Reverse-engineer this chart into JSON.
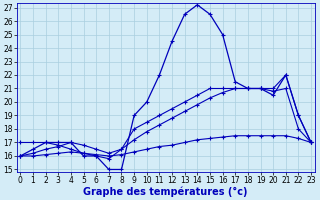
{
  "title": "Graphe des températures (°c)",
  "background_color": "#d4ecf7",
  "line_color": "#0000bb",
  "grid_color": "#aacfe0",
  "hours": [
    0,
    1,
    2,
    3,
    4,
    5,
    6,
    7,
    8,
    9,
    10,
    11,
    12,
    13,
    14,
    15,
    16,
    17,
    18,
    19,
    20,
    21,
    22,
    23
  ],
  "temp_main": [
    16,
    16.5,
    17,
    17,
    17,
    16,
    16,
    15,
    15,
    19,
    20,
    22,
    24.5,
    26.5,
    27.2,
    26.5,
    25,
    21.5,
    21,
    21,
    20.5,
    22,
    19,
    17
  ],
  "temp_line2": [
    17,
    17,
    17,
    16.8,
    16.5,
    16.2,
    16.0,
    15.8,
    16.5,
    18.0,
    18.5,
    19.0,
    19.5,
    20.0,
    20.5,
    21.0,
    21.0,
    21.0,
    21.0,
    21.0,
    21.0,
    22.0,
    19.0,
    17
  ],
  "temp_line3": [
    16,
    16.2,
    16.5,
    16.7,
    17.0,
    16.8,
    16.5,
    16.2,
    16.5,
    17.2,
    17.8,
    18.3,
    18.8,
    19.3,
    19.8,
    20.3,
    20.7,
    21.0,
    21.0,
    21.0,
    20.8,
    21.0,
    18.0,
    17
  ],
  "temp_line4": [
    16,
    16,
    16.1,
    16.2,
    16.3,
    16.2,
    16.1,
    16.0,
    16.1,
    16.3,
    16.5,
    16.7,
    16.8,
    17.0,
    17.2,
    17.3,
    17.4,
    17.5,
    17.5,
    17.5,
    17.5,
    17.5,
    17.3,
    17
  ],
  "ylim": [
    15,
    27
  ],
  "yticks": [
    15,
    16,
    17,
    18,
    19,
    20,
    21,
    22,
    23,
    24,
    25,
    26,
    27
  ],
  "xticks": [
    0,
    1,
    2,
    3,
    4,
    5,
    6,
    7,
    8,
    9,
    10,
    11,
    12,
    13,
    14,
    15,
    16,
    17,
    18,
    19,
    20,
    21,
    22,
    23
  ],
  "tick_fontsize": 5.5,
  "title_fontsize": 7.0,
  "lw_main": 0.9,
  "lw_other": 0.8
}
